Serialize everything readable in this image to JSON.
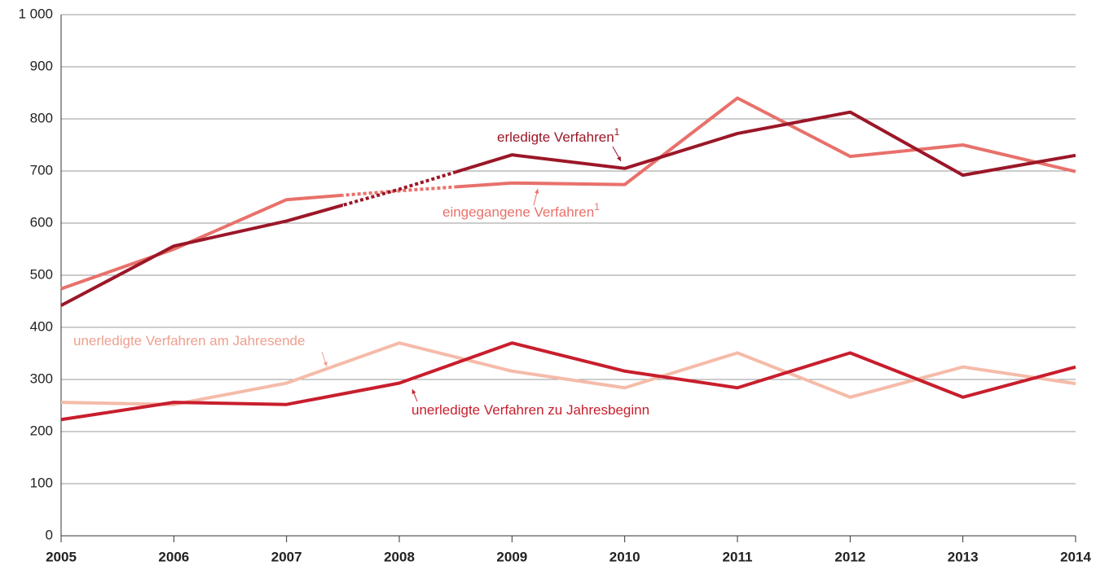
{
  "chart_data": {
    "type": "line",
    "categories": [
      "2005",
      "2006",
      "2007",
      "2008",
      "2009",
      "2010",
      "2011",
      "2012",
      "2013",
      "2014"
    ],
    "series": [
      {
        "name": "eingegangene Verfahren",
        "footnote": "1",
        "color": "#e8716b",
        "break_category": "2008",
        "values": [
          474,
          550,
          645,
          662,
          677,
          674,
          840,
          728,
          750,
          699
        ]
      },
      {
        "name": "erledigte Verfahren",
        "footnote": "1",
        "color": "#9b1728",
        "break_category": "2008",
        "values": [
          442,
          556,
          604,
          665,
          731,
          705,
          772,
          813,
          692,
          730
        ]
      },
      {
        "name": "unerledigte Verfahren am Jahresende",
        "color": "#f5bba9",
        "values": [
          256,
          252,
          293,
          370,
          316,
          284,
          351,
          266,
          324,
          292
        ]
      },
      {
        "name": "unerledigte Verfahren zu Jahresbeginn",
        "color": "#c81e2d",
        "values": [
          223,
          256,
          252,
          293,
          370,
          316,
          284,
          351,
          266,
          324
        ]
      }
    ],
    "ylim": [
      0,
      1000
    ],
    "yticks": [
      0,
      100,
      200,
      300,
      400,
      500,
      600,
      700,
      800,
      900,
      {
        "value": 1000,
        "label": "1 000"
      }
    ],
    "grid": true
  }
}
